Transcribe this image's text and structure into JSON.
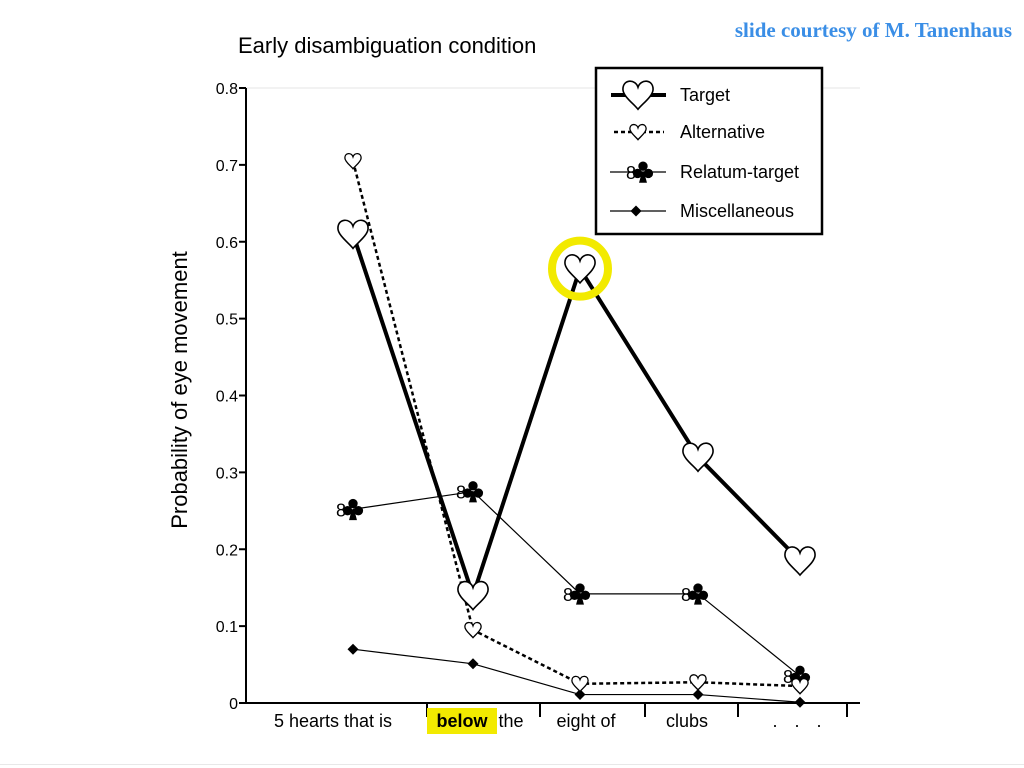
{
  "credit": "slide courtesy of M. Tanenhaus",
  "chart_data": {
    "type": "line",
    "title": "Early disambiguation condition",
    "ylabel": "Probability of eye movement",
    "xlabel": "",
    "ylim": [
      0,
      0.8
    ],
    "yticks": [
      "0",
      "0.1",
      "0.2",
      "0.3",
      "0.4",
      "0.5",
      "0.6",
      "0.7",
      "0.8"
    ],
    "categories": [
      "5 hearts that is",
      "below the",
      "eight of",
      "clubs",
      ". . ."
    ],
    "category_words": [
      {
        "text": "5 hearts that is",
        "highlight": false
      },
      {
        "text": "below",
        "highlight": true
      },
      {
        "text": "the",
        "highlight": false
      },
      {
        "text": "eight of",
        "highlight": false
      },
      {
        "text": "clubs",
        "highlight": false
      },
      {
        "text": ". . .",
        "highlight": false
      }
    ],
    "grid": false,
    "legend_position": "top-right",
    "series": [
      {
        "name": "Target",
        "marker": "heart-outline",
        "line": "thick-solid",
        "x": [
          1,
          2,
          3,
          4,
          5
        ],
        "values": [
          0.61,
          0.14,
          0.565,
          0.32,
          0.185
        ]
      },
      {
        "name": "Alternative",
        "marker": "heart-small",
        "line": "dotted",
        "x": [
          1,
          2,
          3,
          4,
          5
        ],
        "values": [
          0.705,
          0.095,
          0.025,
          0.027,
          0.022
        ]
      },
      {
        "name": "Relatum-target",
        "marker": "8-club",
        "line": "thin-solid",
        "x": [
          1,
          2,
          3,
          4,
          5
        ],
        "values": [
          0.252,
          0.275,
          0.142,
          0.142,
          0.035
        ]
      },
      {
        "name": "Miscellaneous",
        "marker": "diamond-filled",
        "line": "thin-solid",
        "x": [
          1,
          2,
          3,
          4,
          5
        ],
        "values": [
          0.07,
          0.051,
          0.011,
          0.011,
          0.001
        ]
      }
    ],
    "annotations": [
      {
        "type": "circle-highlight",
        "series": "Target",
        "x": 3,
        "color": "#f2ea00"
      }
    ],
    "colors": {
      "highlight": "#f2ea00",
      "credit": "#3a8ee6",
      "ink": "#000000"
    }
  }
}
